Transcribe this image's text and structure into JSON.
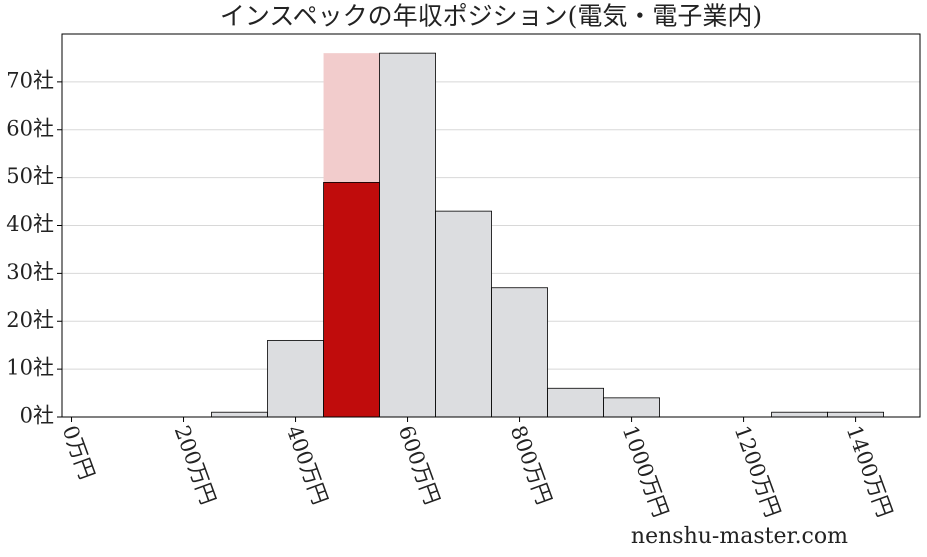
{
  "chart_data": {
    "type": "histogram",
    "title": "インスペックの年収ポジション(電気・電子業内)",
    "bins": [
      250,
      350,
      450,
      550,
      650,
      750,
      850,
      950,
      1050,
      1150,
      1250,
      1350,
      1450
    ],
    "values": [
      1,
      16,
      49,
      76,
      43,
      27,
      6,
      4,
      0,
      0,
      1,
      1
    ],
    "color": "#dcdde0",
    "highlight": {
      "index": 2,
      "color": "#c00c0c",
      "background": "#f2cccc"
    },
    "xlim": [
      -17,
      1515
    ],
    "ylim": [
      0,
      80
    ],
    "xticks": [
      {
        "value": 0,
        "label": "0万円"
      },
      {
        "value": 200,
        "label": "200万円"
      },
      {
        "value": 400,
        "label": "400万円"
      },
      {
        "value": 600,
        "label": "600万円"
      },
      {
        "value": 800,
        "label": "800万円"
      },
      {
        "value": 1000,
        "label": "1000万円"
      },
      {
        "value": 1200,
        "label": "1200万円"
      },
      {
        "value": 1400,
        "label": "1400万円"
      }
    ],
    "yticks": [
      {
        "value": 0,
        "label": "0社"
      },
      {
        "value": 10,
        "label": "10社"
      },
      {
        "value": 20,
        "label": "20社"
      },
      {
        "value": 30,
        "label": "30社"
      },
      {
        "value": 40,
        "label": "40社"
      },
      {
        "value": 50,
        "label": "50社"
      },
      {
        "value": 60,
        "label": "60社"
      },
      {
        "value": 70,
        "label": "70社"
      }
    ],
    "grid": true,
    "watermark": "nenshu-master.com"
  }
}
